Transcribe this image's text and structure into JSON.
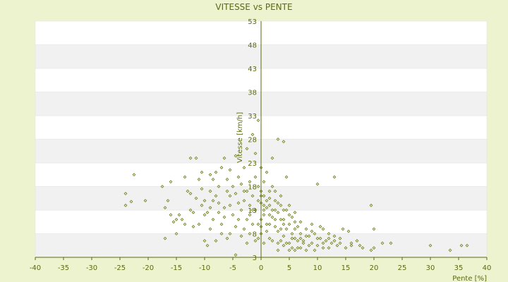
{
  "chart_data": {
    "type": "scatter",
    "title": "VITESSE vs PENTE",
    "xlabel": "Pente [%]",
    "ylabel": "Vitesse [km/h]",
    "xlim": [
      -40,
      40
    ],
    "ylim": [
      3,
      53
    ],
    "x_ticks": [
      -40,
      -35,
      -30,
      -25,
      -20,
      -15,
      -10,
      -5,
      0,
      5,
      10,
      15,
      20,
      25,
      30,
      35,
      40
    ],
    "y_ticks": [
      3,
      8,
      13,
      18,
      23,
      28,
      33,
      38,
      43,
      48,
      53
    ],
    "grid": "horizontal-bands",
    "point_color": "#6b7d1a",
    "band_colors": [
      "#ffffff",
      "#f1f1f1"
    ],
    "series": [
      {
        "values": [
          [
            -24,
            16.5
          ],
          [
            -24,
            14
          ],
          [
            -23,
            14.8
          ],
          [
            -22.5,
            20.5
          ],
          [
            -20.5,
            15
          ],
          [
            -17.5,
            18
          ],
          [
            -17,
            7
          ],
          [
            -17,
            13.5
          ],
          [
            -16.5,
            15
          ],
          [
            -16,
            19
          ],
          [
            -15.5,
            10.5
          ],
          [
            -15,
            11
          ],
          [
            -14.5,
            12
          ],
          [
            -13.5,
            20
          ],
          [
            -13.5,
            10
          ],
          [
            -13,
            17
          ],
          [
            -12.5,
            13
          ],
          [
            -12.5,
            24
          ],
          [
            -12,
            12.5
          ],
          [
            -12,
            9.5
          ],
          [
            -11.5,
            24
          ],
          [
            -11,
            19.5
          ],
          [
            -11,
            10
          ],
          [
            -10.5,
            17.5
          ],
          [
            -10.5,
            21
          ],
          [
            -10,
            6.5
          ],
          [
            -10,
            15
          ],
          [
            -10,
            12
          ],
          [
            -9.5,
            12.5
          ],
          [
            -9,
            9
          ],
          [
            -9,
            20.5
          ],
          [
            -9,
            13.5
          ],
          [
            -8.5,
            19.5
          ],
          [
            -8.5,
            11
          ],
          [
            -8,
            16
          ],
          [
            -8,
            21
          ],
          [
            -7.5,
            14.5
          ],
          [
            -7.5,
            18
          ],
          [
            -7,
            22
          ],
          [
            -7,
            10
          ],
          [
            -6.5,
            13.5
          ],
          [
            -6.5,
            24
          ],
          [
            -6,
            17
          ],
          [
            -6,
            19.5
          ],
          [
            -5.5,
            8
          ],
          [
            -5.5,
            14
          ],
          [
            -5.5,
            21.5
          ],
          [
            -5,
            12
          ],
          [
            -5,
            18
          ],
          [
            -4.5,
            3.5
          ],
          [
            -4.5,
            16.5
          ],
          [
            -4.5,
            24.5
          ],
          [
            -4,
            11
          ],
          [
            -4,
            20
          ],
          [
            -3.5,
            13
          ],
          [
            -3.5,
            18.5
          ],
          [
            -3,
            9
          ],
          [
            -3,
            15
          ],
          [
            -3,
            22
          ],
          [
            -2.5,
            6
          ],
          [
            -2.5,
            17
          ],
          [
            -2.5,
            26
          ],
          [
            -2,
            12
          ],
          [
            -2,
            19
          ],
          [
            -2,
            14
          ],
          [
            -1.5,
            29
          ],
          [
            -1.5,
            10
          ],
          [
            -1.5,
            16
          ],
          [
            -1,
            20
          ],
          [
            -1,
            13
          ],
          [
            -1,
            25
          ],
          [
            -0.5,
            7
          ],
          [
            -0.5,
            15
          ],
          [
            -0.5,
            18
          ],
          [
            -0.5,
            32
          ],
          [
            0,
            11
          ],
          [
            0,
            14.5
          ],
          [
            0,
            17
          ],
          [
            0,
            22
          ],
          [
            0,
            8
          ],
          [
            0.5,
            13
          ],
          [
            0.5,
            16
          ],
          [
            0.5,
            19
          ],
          [
            1,
            15
          ],
          [
            1,
            10
          ],
          [
            1,
            21
          ],
          [
            1.5,
            14
          ],
          [
            1.5,
            17
          ],
          [
            1.5,
            7
          ],
          [
            2,
            13
          ],
          [
            2,
            18
          ],
          [
            2,
            24
          ],
          [
            2.5,
            11
          ],
          [
            2.5,
            15
          ],
          [
            3,
            6
          ],
          [
            3,
            12.5
          ],
          [
            3,
            28
          ],
          [
            3.5,
            9
          ],
          [
            3.5,
            14
          ],
          [
            4,
            27.5
          ],
          [
            4,
            7.5
          ],
          [
            4,
            11
          ],
          [
            4.5,
            13
          ],
          [
            4.5,
            20
          ],
          [
            5,
            6
          ],
          [
            5,
            10
          ],
          [
            5,
            14
          ],
          [
            5.5,
            8
          ],
          [
            5.5,
            11.5
          ],
          [
            6,
            7
          ],
          [
            6,
            12.5
          ],
          [
            6.5,
            5
          ],
          [
            6.5,
            9.5
          ],
          [
            7,
            8
          ],
          [
            7,
            10.5
          ],
          [
            7.5,
            6.5
          ],
          [
            8,
            9
          ],
          [
            8,
            4.5
          ],
          [
            8.5,
            7.5
          ],
          [
            9,
            6
          ],
          [
            9,
            10
          ],
          [
            9.5,
            8
          ],
          [
            10,
            5.5
          ],
          [
            10,
            18.5
          ],
          [
            10.5,
            7
          ],
          [
            11,
            9
          ],
          [
            11,
            5
          ],
          [
            11.5,
            6.5
          ],
          [
            12,
            8
          ],
          [
            12.5,
            6
          ],
          [
            13,
            20
          ],
          [
            13,
            7.5
          ],
          [
            13.5,
            5.5
          ],
          [
            14,
            6
          ],
          [
            14.5,
            9
          ],
          [
            15,
            5
          ],
          [
            15.5,
            8.5
          ],
          [
            16,
            6
          ],
          [
            17,
            6.5
          ],
          [
            17.5,
            5.5
          ],
          [
            18,
            5
          ],
          [
            19.5,
            14
          ],
          [
            19.5,
            4.5
          ],
          [
            20,
            9
          ],
          [
            20,
            5
          ],
          [
            21.5,
            6
          ],
          [
            23,
            6
          ],
          [
            30,
            5.5
          ],
          [
            33.5,
            4.5
          ],
          [
            35.5,
            5.5
          ],
          [
            36.5,
            5.5
          ],
          [
            1,
            8.5
          ],
          [
            2,
            6.5
          ],
          [
            4,
            5.5
          ],
          [
            6,
            4.5
          ],
          [
            7.5,
            6
          ],
          [
            3,
            4.5
          ],
          [
            0.5,
            6
          ],
          [
            -1,
            6.5
          ],
          [
            -2,
            8
          ],
          [
            -3.5,
            7.5
          ],
          [
            -4.5,
            9.5
          ],
          [
            -6,
            7
          ],
          [
            -7,
            8
          ],
          [
            -8,
            6.5
          ],
          [
            -9.5,
            5.5
          ],
          [
            1.5,
            12
          ],
          [
            2.5,
            9.5
          ],
          [
            3.5,
            6.5
          ],
          [
            5,
            4.5
          ],
          [
            6.5,
            6.5
          ],
          [
            8.5,
            5.5
          ],
          [
            9.5,
            4.5
          ],
          [
            10.5,
            9.5
          ],
          [
            12,
            5
          ],
          [
            14,
            7
          ],
          [
            16,
            5.5
          ],
          [
            -0.5,
            10
          ],
          [
            0.5,
            12
          ],
          [
            1.5,
            10
          ],
          [
            2.5,
            13
          ],
          [
            3.5,
            16
          ],
          [
            4.5,
            9
          ],
          [
            5.5,
            7
          ],
          [
            7,
            5
          ],
          [
            -1.5,
            13
          ],
          [
            -2.5,
            11
          ],
          [
            -3,
            17
          ],
          [
            -4,
            14.5
          ],
          [
            -5.5,
            16
          ],
          [
            -6.5,
            11.5
          ],
          [
            -7.5,
            12.5
          ],
          [
            -8.5,
            15
          ],
          [
            -9,
            17
          ],
          [
            -10.5,
            14
          ],
          [
            -11.5,
            15.5
          ],
          [
            -12.5,
            16.5
          ],
          [
            -14,
            11
          ],
          [
            -15,
            8
          ],
          [
            -16,
            12
          ],
          [
            0,
            9.5
          ],
          [
            0,
            16
          ],
          [
            1,
            13.5
          ],
          [
            2,
            11.5
          ],
          [
            3,
            8.5
          ],
          [
            4,
            10
          ],
          [
            4.5,
            6
          ],
          [
            5.5,
            5
          ],
          [
            6,
            9
          ],
          [
            7,
            7
          ],
          [
            8,
            7.5
          ],
          [
            9,
            8.5
          ],
          [
            10,
            7
          ],
          [
            11,
            6
          ],
          [
            12,
            7
          ],
          [
            13,
            6.5
          ],
          [
            0.5,
            14
          ],
          [
            1.5,
            15.5
          ],
          [
            2.5,
            17
          ],
          [
            3,
            14.5
          ],
          [
            3.5,
            11
          ],
          [
            4,
            13
          ],
          [
            5,
            12
          ],
          [
            6,
            10.5
          ]
        ]
      }
    ]
  }
}
